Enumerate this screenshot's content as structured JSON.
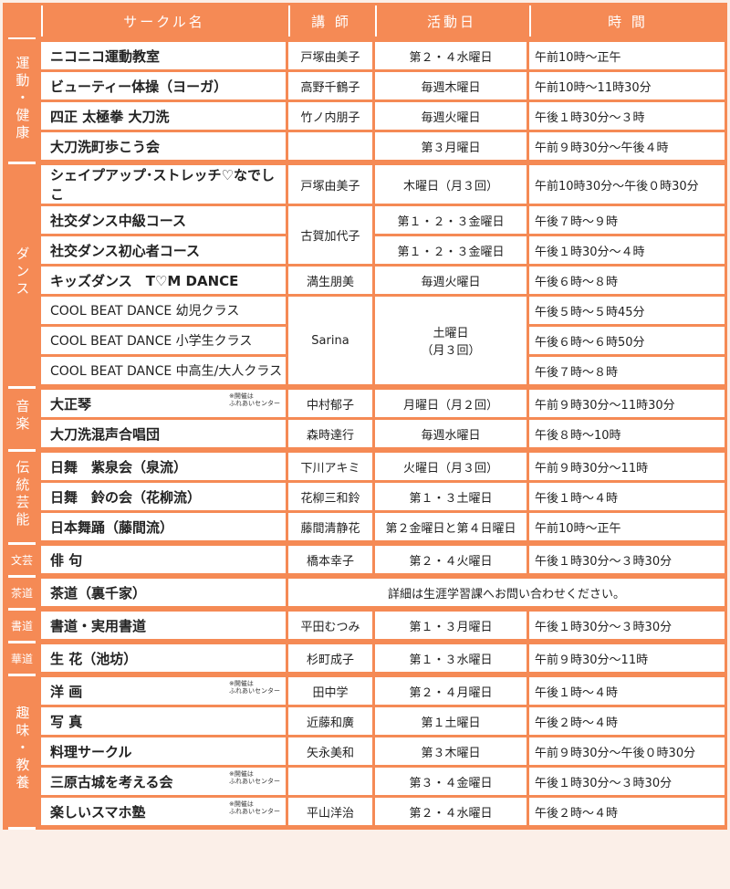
{
  "header": {
    "category": "",
    "name": "サークル名",
    "teacher": "講 師",
    "day": "活動日",
    "time": "時 間"
  },
  "colors": {
    "accent": "#f58a55"
  },
  "groups": [
    {
      "category": "運動・健康",
      "rows": [
        {
          "name": "ニコニコ運動教室",
          "teacher": "戸塚由美子",
          "day": "第２・４水曜日",
          "time": "午前10時～正午"
        },
        {
          "name": "ビューティー体操（ヨーガ）",
          "teacher": "高野千鶴子",
          "day": "毎週木曜日",
          "time": "午前10時～11時30分"
        },
        {
          "name": "四正 太極拳 大刀洗",
          "teacher": "竹ノ内朋子",
          "day": "毎週火曜日",
          "time": "午後１時30分～３時"
        },
        {
          "name": "大刀洗町歩こう会",
          "teacher": "",
          "day": "第３月曜日",
          "time": "午前９時30分～午後４時"
        }
      ]
    },
    {
      "category": "ダンス",
      "rows": [
        {
          "name": "シェイプアップ･ストレッチ♡なでしこ",
          "teacher": "戸塚由美子",
          "day": "木曜日（月３回）",
          "time": "午前10時30分～午後０時30分"
        },
        {
          "name": "社交ダンス中級コース",
          "teacher": "古賀加代子",
          "teacher_span": 2,
          "day": "第１・２・３金曜日",
          "time": "午後７時～９時"
        },
        {
          "name": "社交ダンス初心者コース",
          "day": "第１・２・３金曜日",
          "time": "午後１時30分～４時"
        },
        {
          "name": "キッズダンス　T♡M DANCE",
          "teacher": "満生朋美",
          "day": "毎週火曜日",
          "time": "午後６時～８時"
        },
        {
          "name": "COOL BEAT DANCE  幼児クラス",
          "light": true,
          "teacher": "Sarina",
          "teacher_span": 3,
          "day": "土曜日\n（月３回）",
          "day_span": 3,
          "time": "午後５時～５時45分"
        },
        {
          "name": "COOL BEAT DANCE  小学生クラス",
          "light": true,
          "time": "午後６時～６時50分"
        },
        {
          "name": "COOL BEAT DANCE  中高生/大人クラス",
          "light": true,
          "time": "午後７時～８時"
        }
      ]
    },
    {
      "category": "音楽",
      "rows": [
        {
          "name": "大正琴",
          "note": "※開催は\nふれあいセンター",
          "teacher": "中村郁子",
          "day": "月曜日（月２回）",
          "time": "午前９時30分～11時30分"
        },
        {
          "name": "大刀洗混声合唱団",
          "teacher": "森時達行",
          "day": "毎週水曜日",
          "time": "午後８時～10時"
        }
      ]
    },
    {
      "category": "伝統芸能",
      "rows": [
        {
          "name": "日舞　紫泉会（泉流）",
          "teacher": "下川アキミ",
          "day": "火曜日（月３回）",
          "time": "午前９時30分～11時"
        },
        {
          "name": "日舞　鈴の会（花柳流）",
          "teacher": "花柳三和鈴",
          "day": "第１・３土曜日",
          "time": "午後１時～４時"
        },
        {
          "name": "日本舞踊（藤間流）",
          "teacher": "藤間清静花",
          "day": "第２金曜日と第４日曜日",
          "time": "午前10時～正午"
        }
      ]
    },
    {
      "category": "文芸",
      "small": true,
      "rows": [
        {
          "name": "俳 句",
          "teacher": "橋本幸子",
          "day": "第２・４火曜日",
          "time": "午後１時30分～３時30分"
        }
      ]
    },
    {
      "category": "茶道",
      "small": true,
      "rows": [
        {
          "name": "茶道（裏千家）",
          "detail": "詳細は生涯学習課へお問い合わせください。"
        }
      ]
    },
    {
      "category": "書道",
      "small": true,
      "rows": [
        {
          "name": "書道・実用書道",
          "teacher": "平田むつみ",
          "day": "第１・３月曜日",
          "time": "午後１時30分～３時30分"
        }
      ]
    },
    {
      "category": "華道",
      "small": true,
      "rows": [
        {
          "name": "生 花（池坊）",
          "teacher": "杉町成子",
          "day": "第１・３水曜日",
          "time": "午前９時30分～11時"
        }
      ]
    },
    {
      "category": "趣味・教養",
      "rows": [
        {
          "name": "洋 画",
          "note": "※開催は\nふれあいセンター",
          "teacher": "田中学",
          "day": "第２・４月曜日",
          "time": "午後１時～４時"
        },
        {
          "name": "写 真",
          "teacher": "近藤和廣",
          "day": "第１土曜日",
          "time": "午後２時～４時"
        },
        {
          "name": "料理サークル",
          "teacher": "矢永美和",
          "day": "第３木曜日",
          "time": "午前９時30分～午後０時30分"
        },
        {
          "name": "三原古城を考える会",
          "note": "※開催は\nふれあいセンター",
          "teacher": "",
          "day": "第３・４金曜日",
          "time": "午後１時30分～３時30分"
        },
        {
          "name": "楽しいスマホ塾",
          "note": "※開催は\nふれあいセンター",
          "teacher": "平山洋治",
          "day": "第２・４水曜日",
          "time": "午後２時～４時"
        }
      ]
    }
  ]
}
